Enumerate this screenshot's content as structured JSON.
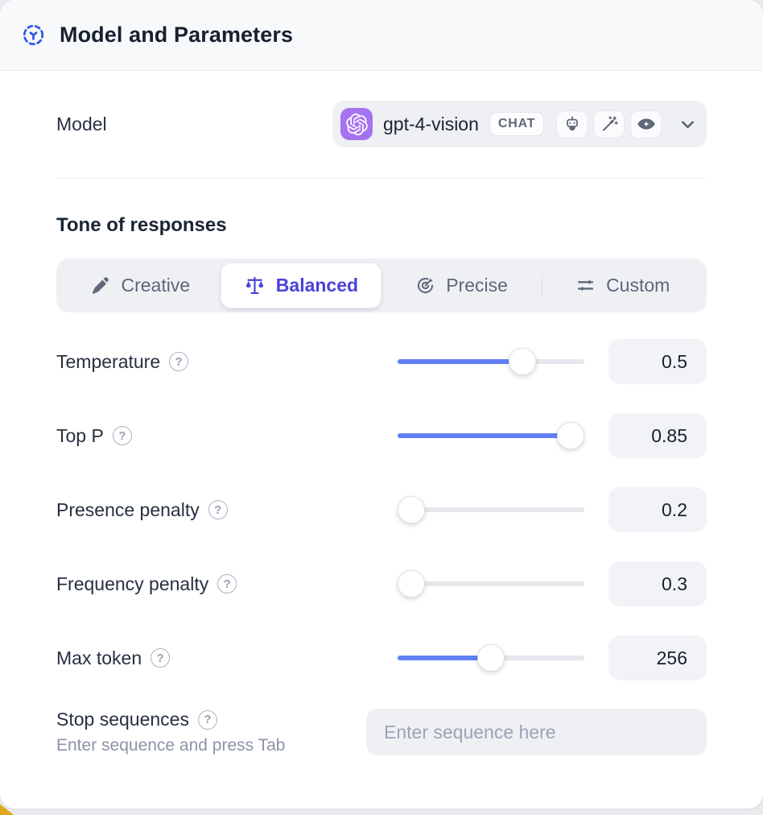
{
  "header": {
    "title": "Model and Parameters"
  },
  "model_row": {
    "label": "Model",
    "model_name": "gpt-4-vision",
    "type_badge": "CHAT",
    "capabilities": [
      {
        "icon": "bot-icon"
      },
      {
        "icon": "magic-wand-icon"
      },
      {
        "icon": "vision-eye-icon"
      }
    ]
  },
  "tone": {
    "heading": "Tone of responses",
    "selected": "Balanced",
    "options": [
      {
        "id": "creative",
        "label": "Creative",
        "icon": "brush-icon"
      },
      {
        "id": "balanced",
        "label": "Balanced",
        "icon": "balance-scale-icon"
      },
      {
        "id": "precise",
        "label": "Precise",
        "icon": "target-icon"
      },
      {
        "id": "custom",
        "label": "Custom",
        "icon": "sliders-icon"
      }
    ]
  },
  "parameters": [
    {
      "id": "temperature",
      "label": "Temperature",
      "value": "0.5",
      "slider_fill": 0.67
    },
    {
      "id": "top_p",
      "label": "Top P",
      "value": "0.85",
      "slider_fill": 0.99
    },
    {
      "id": "presence_penalty",
      "label": "Presence penalty",
      "value": "0.2",
      "slider_fill": 0.0
    },
    {
      "id": "frequency_penalty",
      "label": "Frequency penalty",
      "value": "0.3",
      "slider_fill": 0.0
    },
    {
      "id": "max_token",
      "label": "Max token",
      "value": "256",
      "slider_fill": 0.5
    }
  ],
  "stop_sequences": {
    "label": "Stop sequences",
    "helper": "Enter sequence and press Tab",
    "placeholder": "Enter sequence here"
  },
  "colors": {
    "accent_blue": "#6180f5",
    "selected_indigo": "#4a43d9",
    "header_icon_blue": "#2f5be5",
    "openai_tile_purple": "#a673f0",
    "corner_accent_yellow": "#dfa81e",
    "control_background": "#eef0f4"
  }
}
